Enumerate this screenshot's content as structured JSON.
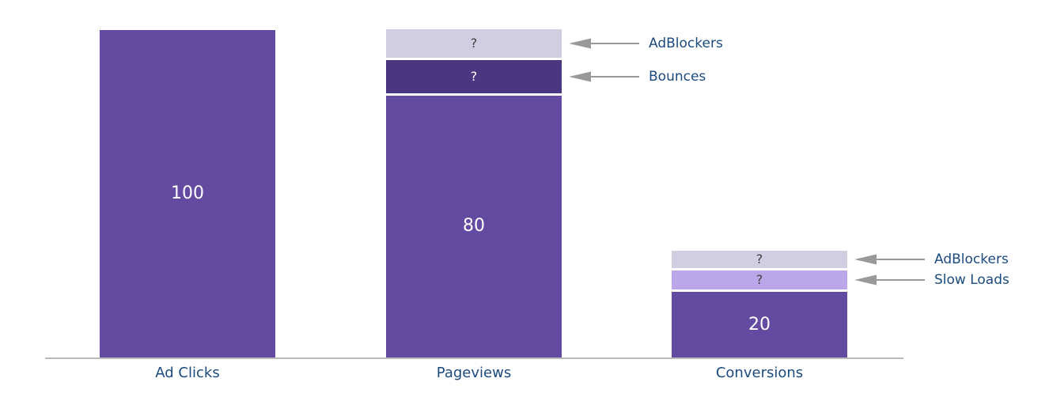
{
  "chart_data": {
    "type": "bar",
    "subtype": "stacked-funnel",
    "title": "",
    "xlabel": "",
    "ylabel": "",
    "ylim": [
      0,
      100
    ],
    "grid": false,
    "legend": false,
    "categories": [
      "Ad Clicks",
      "Pageviews",
      "Conversions"
    ],
    "bars": [
      {
        "category": "Ad Clicks",
        "total": 100,
        "segments": [
          {
            "name": "Ad Clicks",
            "role": "value",
            "label": "100",
            "value": 100,
            "color": "#654aa2",
            "label_color": "#ffffff"
          }
        ]
      },
      {
        "category": "Pageviews",
        "total": 100,
        "segments": [
          {
            "name": "AdBlockers",
            "role": "loss",
            "label": "?",
            "value": null,
            "estimated_value": 8.7,
            "color": "#d2cee2",
            "label_color": "#3f3f3f"
          },
          {
            "name": "Bounces",
            "role": "loss",
            "label": "?",
            "value": null,
            "estimated_value": 10.1,
            "color": "#4a3780",
            "label_color": "#ffffff"
          },
          {
            "name": "Pageviews",
            "role": "value",
            "label": "80",
            "value": 80,
            "color": "#654aa2",
            "label_color": "#ffffff"
          }
        ]
      },
      {
        "category": "Conversions",
        "total": 32,
        "segments": [
          {
            "name": "AdBlockers",
            "role": "loss",
            "label": "?",
            "value": null,
            "estimated_value": 5.3,
            "color": "#d2cee2",
            "label_color": "#3f3f3f"
          },
          {
            "name": "Slow Loads",
            "role": "loss",
            "label": "?",
            "value": null,
            "estimated_value": 5.8,
            "color": "#bba6ea",
            "label_color": "#3f3f3f"
          },
          {
            "name": "Conversions",
            "role": "value",
            "label": "20",
            "value": 20,
            "color": "#654aa2",
            "label_color": "#ffffff"
          }
        ]
      }
    ],
    "annotations": [
      {
        "label": "AdBlockers",
        "bar": 1,
        "segment": 0
      },
      {
        "label": "Bounces",
        "bar": 1,
        "segment": 1
      },
      {
        "label": "AdBlockers",
        "bar": 2,
        "segment": 0
      },
      {
        "label": "Slow Loads",
        "bar": 2,
        "segment": 1
      }
    ],
    "colors": {
      "axis_line": "#b9b9b9",
      "category_label": "#1b4b7e",
      "annotation_label": "#1b4b7e",
      "arrow": "#999999",
      "background": "#ffffff"
    }
  }
}
